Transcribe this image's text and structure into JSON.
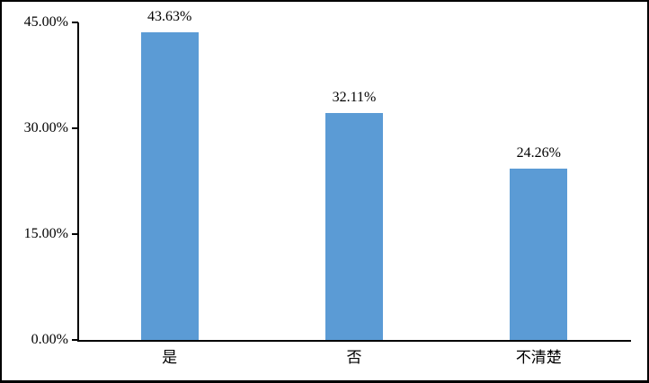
{
  "chart_data": {
    "type": "bar",
    "title": "",
    "xlabel": "",
    "ylabel": "",
    "categories": [
      "是",
      "否",
      "不清楚"
    ],
    "values": [
      43.63,
      32.11,
      24.26
    ],
    "value_labels": [
      "43.63%",
      "32.11%",
      "24.26%"
    ],
    "y_tick_labels": [
      "0.00%",
      "15.00%",
      "30.00%",
      "45.00%"
    ],
    "y_tick_values": [
      0,
      15,
      30,
      45
    ],
    "ylim": [
      0,
      45
    ],
    "grid": false,
    "legend_position": "none",
    "bar_color": "#5B9BD5",
    "axis_color": "#000000",
    "label_color": "#000000",
    "frame_color": "#000000",
    "background_color": "#FFFFFF"
  }
}
